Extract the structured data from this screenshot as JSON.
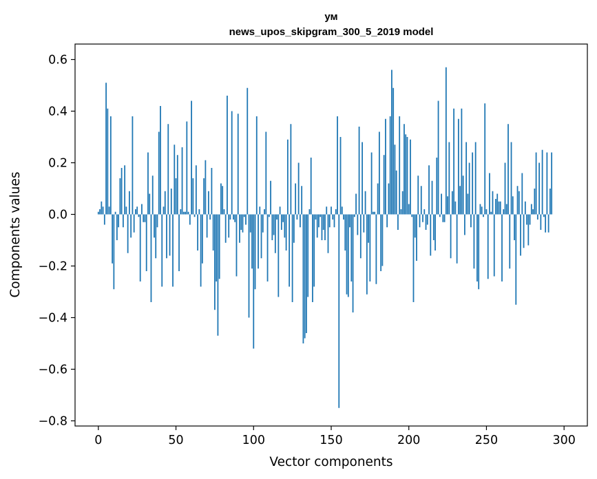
{
  "chart_data": {
    "type": "bar",
    "title": "ум",
    "subtitle": "news_upos_skipgram_300_5_2019 model",
    "xlabel": "Vector components",
    "ylabel": "Components values",
    "xlim": [
      -15,
      315
    ],
    "ylim": [
      -0.82,
      0.66
    ],
    "xticks": [
      0,
      50,
      100,
      150,
      200,
      250,
      300
    ],
    "yticks": [
      0.6,
      0.4,
      0.2,
      0.0,
      -0.2,
      -0.4,
      -0.6,
      -0.8
    ],
    "ytick_labels": [
      "0.6",
      "0.4",
      "0.2",
      "0.0",
      "−0.2",
      "−0.4",
      "−0.6",
      "−0.8"
    ],
    "bar_color": "#1f77b4",
    "grid": false,
    "x": "0..299",
    "values": [
      0.01,
      0.02,
      0.05,
      0.03,
      -0.04,
      0.51,
      0.41,
      0.03,
      0.38,
      -0.19,
      -0.29,
      0.01,
      -0.1,
      -0.05,
      0.14,
      0.18,
      -0.05,
      0.19,
      0.03,
      -0.15,
      0.09,
      -0.09,
      0.38,
      -0.07,
      0.02,
      0.03,
      -0.01,
      -0.26,
      0.04,
      -0.03,
      -0.03,
      -0.22,
      0.24,
      0.08,
      -0.34,
      0.15,
      -0.09,
      -0.17,
      -0.05,
      0.32,
      0.42,
      -0.28,
      0.03,
      0.09,
      -0.17,
      0.35,
      -0.16,
      0.1,
      -0.28,
      0.27,
      0.14,
      0.23,
      -0.22,
      0.02,
      0.26,
      0.01,
      0.01,
      0.36,
      0.01,
      -0.04,
      0.44,
      0.14,
      -0.01,
      0.19,
      -0.14,
      0.02,
      -0.28,
      -0.19,
      0.14,
      0.21,
      -0.09,
      0.09,
      -0.02,
      0.18,
      -0.14,
      -0.37,
      -0.26,
      -0.47,
      -0.25,
      0.12,
      0.11,
      0.02,
      -0.11,
      0.46,
      -0.09,
      -0.02,
      0.4,
      -0.02,
      -0.03,
      -0.24,
      0.39,
      -0.11,
      -0.06,
      -0.07,
      -0.01,
      -0.04,
      0.49,
      -0.4,
      -0.07,
      -0.21,
      -0.52,
      -0.29,
      0.38,
      -0.21,
      0.03,
      -0.17,
      -0.07,
      0.02,
      0.32,
      -0.26,
      -0.01,
      0.13,
      -0.1,
      -0.08,
      -0.15,
      -0.02,
      -0.32,
      0.03,
      -0.06,
      -0.03,
      -0.09,
      -0.14,
      0.29,
      -0.28,
      0.35,
      -0.34,
      -0.11,
      0.12,
      -0.02,
      0.2,
      -0.05,
      0.11,
      -0.5,
      -0.48,
      -0.46,
      -0.32,
      0.02,
      0.22,
      -0.34,
      -0.28,
      -0.02,
      -0.09,
      -0.05,
      -0.01,
      -0.1,
      -0.06,
      -0.1,
      0.03,
      -0.15,
      -0.05,
      0.03,
      -0.02,
      -0.05,
      0.02,
      0.38,
      -0.75,
      0.3,
      0.03,
      -0.02,
      -0.14,
      -0.31,
      -0.32,
      -0.05,
      -0.26,
      -0.38,
      -0.01,
      0.08,
      -0.08,
      0.34,
      -0.17,
      0.28,
      -0.07,
      0.09,
      -0.31,
      -0.11,
      -0.26,
      0.24,
      0.01,
      0.01,
      -0.27,
      0.12,
      0.32,
      -0.22,
      -0.2,
      0.23,
      0.37,
      -0.05,
      0.12,
      0.38,
      0.56,
      0.49,
      0.27,
      0.17,
      -0.06,
      0.38,
      0.02,
      0.09,
      0.35,
      0.31,
      0.3,
      0.04,
      0.29,
      -0.01,
      -0.34,
      -0.09,
      -0.18,
      0.15,
      -0.05,
      0.11,
      -0.03,
      0.02,
      -0.06,
      -0.04,
      0.19,
      -0.16,
      0.13,
      -0.1,
      -0.14,
      0.22,
      0.44,
      -0.01,
      0.08,
      -0.03,
      -0.03,
      0.57,
      0.07,
      0.28,
      -0.17,
      0.09,
      0.41,
      0.05,
      -0.19,
      0.37,
      0.11,
      0.41,
      0.15,
      -0.08,
      0.28,
      0.08,
      0.2,
      -0.05,
      0.24,
      -0.21,
      0.28,
      -0.26,
      -0.29,
      0.04,
      0.03,
      -0.01,
      0.43,
      0.02,
      -0.25,
      0.16,
      0.01,
      0.09,
      -0.24,
      0.06,
      0.08,
      0.05,
      0.05,
      -0.26,
      0.02,
      0.2,
      0.04,
      0.35,
      -0.21,
      0.28,
      0.07,
      -0.1,
      -0.35,
      0.11,
      0.09,
      -0.16,
      0.16,
      -0.13,
      0.05,
      -0.04,
      -0.12,
      -0.04,
      0.04,
      0.02,
      0.1,
      0.24,
      -0.02,
      0.2,
      -0.06,
      0.25,
      -0.01,
      -0.07,
      0.24,
      -0.07,
      0.1,
      0.24
    ]
  }
}
